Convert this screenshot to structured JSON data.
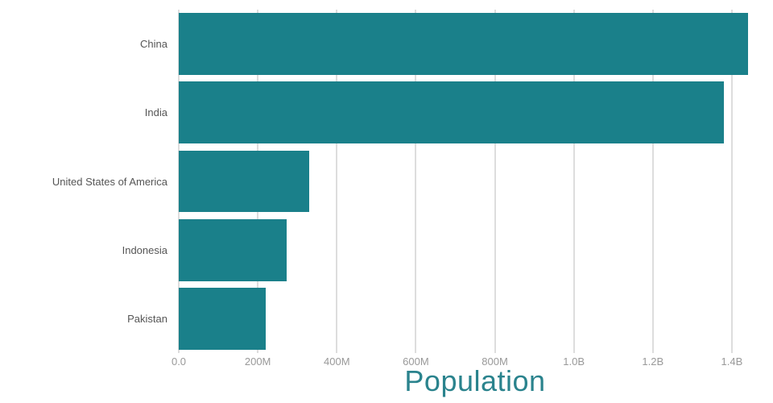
{
  "chart_data": {
    "type": "bar",
    "orientation": "horizontal",
    "title": "Population",
    "xlabel": "Population",
    "ylabel": "",
    "categories": [
      "China",
      "India",
      "United States of America",
      "Indonesia",
      "Pakistan"
    ],
    "values": [
      1441000000,
      1380000000,
      331000000,
      273000000,
      220000000
    ],
    "xlim": [
      0,
      1500000000
    ],
    "x_ticks": [
      {
        "value": 0,
        "label": "0.0"
      },
      {
        "value": 200000000,
        "label": "200M"
      },
      {
        "value": 400000000,
        "label": "400M"
      },
      {
        "value": 600000000,
        "label": "600M"
      },
      {
        "value": 800000000,
        "label": "800M"
      },
      {
        "value": 1000000000,
        "label": "1.0B"
      },
      {
        "value": 1200000000,
        "label": "1.2B"
      },
      {
        "value": 1400000000,
        "label": "1.4B"
      }
    ],
    "grid": "vertical",
    "legend": "none",
    "colors": {
      "bar": "#1a808a",
      "title": "#2a838d",
      "gridline": "#dddddd",
      "category_label": "#555555",
      "tick_label": "#999999",
      "background": "#ffffff"
    }
  }
}
